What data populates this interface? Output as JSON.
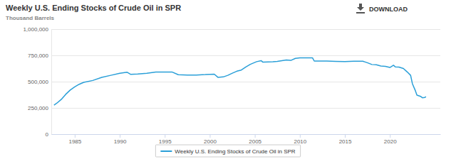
{
  "chart_data": {
    "type": "line",
    "title": "Weekly U.S. Ending Stocks of Crude Oil in SPR",
    "subtitle": "Thousand Barrels",
    "annotations": [
      "DOWNLOAD"
    ],
    "x": [
      1982.7,
      1983.0,
      1983.5,
      1984.0,
      1984.5,
      1985.0,
      1985.5,
      1986.0,
      1987.0,
      1988.0,
      1989.0,
      1990.0,
      1990.8,
      1991.2,
      1992.0,
      1993.0,
      1994.0,
      1995.0,
      1995.8,
      1996.5,
      1997.5,
      1998.5,
      1999.5,
      2000.0,
      2000.5,
      2000.9,
      2001.5,
      2002.0,
      2002.5,
      2003.0,
      2003.5,
      2004.0,
      2004.5,
      2005.2,
      2005.7,
      2005.9,
      2006.5,
      2007.0,
      2007.5,
      2008.0,
      2008.5,
      2009.0,
      2009.5,
      2010.0,
      2011.4,
      2011.6,
      2013.0,
      2014.0,
      2015.0,
      2016.0,
      2017.0,
      2017.5,
      2018.0,
      2018.5,
      2019.0,
      2019.5,
      2020.0,
      2020.4,
      2020.6,
      2021.0,
      2021.5,
      2021.9,
      2022.3,
      2022.5,
      2022.8,
      2023.0,
      2023.4,
      2023.6,
      2023.9,
      2024.0
    ],
    "series": [
      {
        "name": "Weekly U.S. Ending Stocks of Crude Oil in SPR",
        "color": "#2a9fd8",
        "values": [
          277000,
          294000,
          330000,
          379000,
          420000,
          450000,
          475000,
          493000,
          511000,
          541000,
          560000,
          580000,
          590000,
          570000,
          572000,
          580000,
          591000,
          592000,
          592000,
          566000,
          563000,
          563000,
          567000,
          570000,
          571000,
          541000,
          545000,
          560000,
          580000,
          599000,
          610000,
          640000,
          665000,
          690000,
          700000,
          685000,
          688000,
          689000,
          692000,
          700000,
          706000,
          702000,
          721000,
          726000,
          727000,
          696000,
          696000,
          693000,
          691000,
          695000,
          694000,
          680000,
          663000,
          660000,
          649000,
          645000,
          635000,
          656000,
          640000,
          638000,
          625000,
          594000,
          560000,
          480000,
          420000,
          372000,
          360000,
          347000,
          350000,
          357000
        ]
      }
    ],
    "xlim": [
      1982.4,
      2025.6
    ],
    "xticks": [
      1985,
      1990,
      1995,
      2000,
      2005,
      2010,
      2015,
      2020
    ],
    "ylim": [
      0,
      1000000
    ],
    "yticks": [
      0,
      {
        "value": 250000,
        "label": "250,000"
      },
      {
        "value": 500000,
        "label": "500,000"
      },
      {
        "value": 750000,
        "label": "750,000"
      },
      {
        "value": 1000000,
        "label": "1,000,000"
      }
    ],
    "grid": true,
    "legend": "bottom"
  }
}
